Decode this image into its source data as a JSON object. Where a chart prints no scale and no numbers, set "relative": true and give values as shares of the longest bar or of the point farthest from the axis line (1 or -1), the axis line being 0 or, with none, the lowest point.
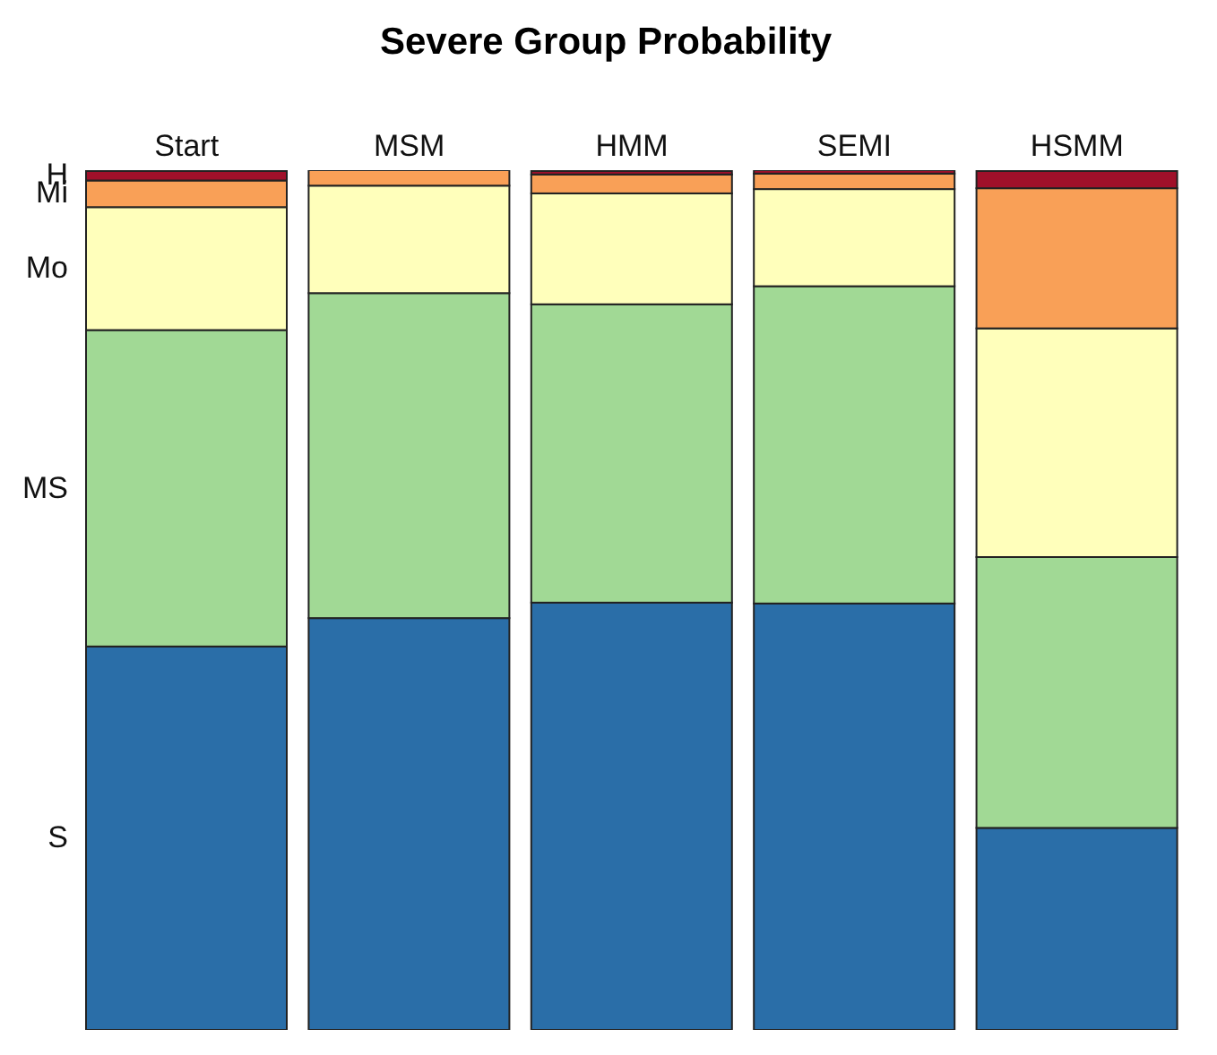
{
  "chart_data": {
    "type": "bar",
    "title": "Severe Group Probability",
    "categories": [
      "Start",
      "MSM",
      "HMM",
      "SEMI",
      "HSMM"
    ],
    "stacked": true,
    "relative": true,
    "legend": false,
    "series": [
      {
        "name": "S",
        "color": "#2a6ea8",
        "values": [
          0.446,
          0.479,
          0.497,
          0.496,
          0.235
        ]
      },
      {
        "name": "MS",
        "color": "#a1d995",
        "values": [
          0.368,
          0.378,
          0.347,
          0.369,
          0.315
        ]
      },
      {
        "name": "Mo",
        "color": "#ffffbb",
        "values": [
          0.143,
          0.125,
          0.129,
          0.113,
          0.266
        ]
      },
      {
        "name": "Mi",
        "color": "#f9a057",
        "values": [
          0.031,
          0.018,
          0.022,
          0.018,
          0.163
        ]
      },
      {
        "name": "H",
        "color": "#a0102a",
        "values": [
          0.011,
          0,
          0.004,
          0.004,
          0.02
        ]
      }
    ]
  }
}
